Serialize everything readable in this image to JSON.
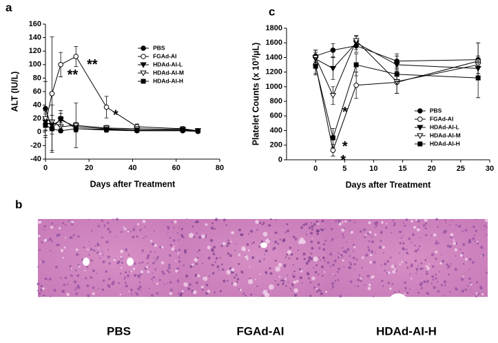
{
  "chart_data": [
    {
      "type": "line",
      "panel_label": "a",
      "ylabel": "ALT (IU/L)",
      "xlabel": "Days after Treatment",
      "xlim": [
        0,
        80
      ],
      "xticks": [
        0,
        20,
        40,
        60,
        80
      ],
      "ylim": [
        -40,
        160
      ],
      "yticks": [
        -40,
        -20,
        0,
        20,
        40,
        60,
        80,
        100,
        120,
        140,
        160
      ],
      "legend": "upper right",
      "x": [
        0,
        3,
        7,
        14,
        28,
        42,
        63,
        70
      ],
      "series": [
        {
          "name": "PBS",
          "color": "#000000",
          "marker": "circle",
          "filled": true,
          "values": [
            35,
            5,
            2,
            5,
            3,
            2,
            2,
            1
          ],
          "errors": [
            40,
            8,
            3,
            4,
            3,
            2,
            2,
            1
          ]
        },
        {
          "name": "FGAd-AI",
          "color": "#000000",
          "marker": "circle",
          "filled": false,
          "values": [
            12,
            57,
            100,
            112,
            37,
            8,
            5,
            2
          ],
          "errors": [
            20,
            84,
            18,
            15,
            16,
            4,
            3,
            1
          ]
        },
        {
          "name": "HDAd-AI-L",
          "color": "#000000",
          "marker": "triangle",
          "filled": true,
          "values": [
            15,
            10,
            18,
            8,
            5,
            3,
            3,
            2
          ],
          "errors": [
            12,
            8,
            10,
            6,
            3,
            2,
            2,
            1
          ]
        },
        {
          "name": "HDAd-AI-M",
          "color": "#000000",
          "marker": "triangle",
          "filled": false,
          "values": [
            20,
            15,
            8,
            10,
            6,
            5,
            4,
            2
          ],
          "errors": [
            10,
            10,
            6,
            33,
            4,
            3,
            2,
            1
          ]
        },
        {
          "name": "HDAd-AI-H",
          "color": "#000000",
          "marker": "square",
          "filled": true,
          "values": [
            10,
            5,
            20,
            5,
            4,
            3,
            3,
            2
          ],
          "errors": [
            8,
            35,
            12,
            5,
            3,
            2,
            2,
            1
          ]
        }
      ],
      "annotations": [
        {
          "text": "**",
          "x": 10,
          "y": 88
        },
        {
          "text": "**",
          "x": 19,
          "y": 103
        },
        {
          "text": "*",
          "x": 31,
          "y": 28
        }
      ]
    },
    {
      "type": "line",
      "panel_label": "c",
      "ylabel": "Platelet Counts (x 10³/µL)",
      "xlabel": "Days after Treatment",
      "xlim": [
        -5,
        30
      ],
      "xticks": [
        0,
        5,
        10,
        15,
        20,
        25,
        30
      ],
      "ylim": [
        0,
        1800
      ],
      "yticks": [
        0,
        200,
        400,
        600,
        800,
        1000,
        1200,
        1400,
        1600,
        1800
      ],
      "legend": "lower right",
      "x": [
        0,
        3,
        7,
        14,
        28
      ],
      "series": [
        {
          "name": "PBS",
          "color": "#000000",
          "marker": "circle",
          "filled": true,
          "values": [
            1420,
            1500,
            1560,
            1350,
            1370
          ],
          "errors": [
            80,
            90,
            90,
            100,
            230
          ]
        },
        {
          "name": "FGAd-AI",
          "color": "#000000",
          "marker": "circle",
          "filled": false,
          "values": [
            1300,
            130,
            1020,
            1060,
            1350
          ],
          "errors": [
            120,
            80,
            180,
            150,
            250
          ]
        },
        {
          "name": "HDAd-AI-L",
          "color": "#000000",
          "marker": "triangle",
          "filled": true,
          "values": [
            1380,
            1250,
            1600,
            1300,
            1250
          ],
          "errors": [
            90,
            150,
            90,
            120,
            100
          ]
        },
        {
          "name": "HDAd-AI-M",
          "color": "#000000",
          "marker": "triangle",
          "filled": false,
          "values": [
            1400,
            880,
            1630,
            1070,
            1300
          ],
          "errors": [
            100,
            120,
            70,
            160,
            120
          ]
        },
        {
          "name": "HDAd-AI-H",
          "color": "#000000",
          "marker": "square",
          "filled": true,
          "values": [
            1280,
            300,
            1300,
            1170,
            1120
          ],
          "errors": [
            120,
            130,
            150,
            100,
            270
          ]
        }
      ],
      "annotations": [
        {
          "text": "*",
          "x": 4.6,
          "y": 680
        },
        {
          "text": "*",
          "x": 4.6,
          "y": 210
        },
        {
          "text": "*",
          "x": 4.3,
          "y": 20
        }
      ]
    }
  ],
  "figure_b": {
    "panel_label": "b",
    "captions": [
      "PBS",
      "FGAd-AI",
      "HDAd-AI-H"
    ]
  }
}
